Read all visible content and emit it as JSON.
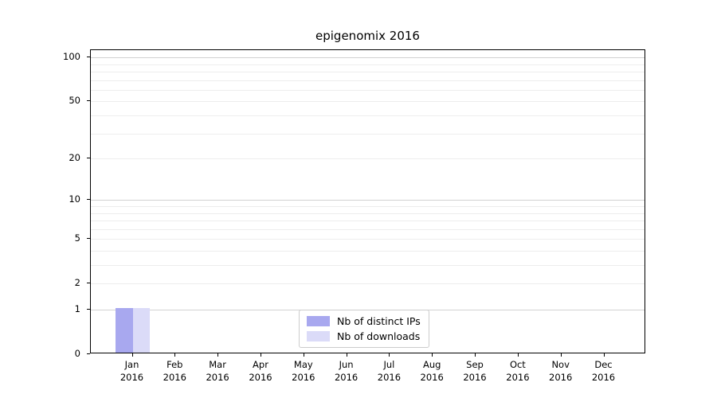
{
  "chart_data": {
    "type": "bar",
    "title": "epigenomix 2016",
    "categories": [
      "Jan 2016",
      "Feb 2016",
      "Mar 2016",
      "Apr 2016",
      "May 2016",
      "Jun 2016",
      "Jul 2016",
      "Aug 2016",
      "Sep 2016",
      "Oct 2016",
      "Nov 2016",
      "Dec 2016"
    ],
    "series": [
      {
        "name": "Nb of distinct IPs",
        "color": "#a8a8ef",
        "values": [
          1,
          0,
          0,
          0,
          0,
          0,
          0,
          0,
          0,
          0,
          0,
          0
        ]
      },
      {
        "name": "Nb of downloads",
        "color": "#dbdbf8",
        "values": [
          1,
          0,
          0,
          0,
          0,
          0,
          0,
          0,
          0,
          0,
          0,
          0
        ]
      }
    ],
    "y_ticks": [
      0,
      1,
      2,
      5,
      10,
      20,
      50,
      100
    ],
    "y_minor_gridlines": [
      2,
      3,
      4,
      5,
      6,
      7,
      8,
      9,
      20,
      30,
      40,
      50,
      60,
      70,
      80,
      90
    ],
    "y_major_gridlines": [
      1,
      10,
      100
    ],
    "y_scale": "log(1+v)",
    "ylim": [
      0,
      112
    ],
    "xlabel": "",
    "ylabel": "",
    "grid": "horizontal",
    "legend_position": "lower center",
    "background_color": "#ffffff",
    "axis_color": "#000000"
  }
}
